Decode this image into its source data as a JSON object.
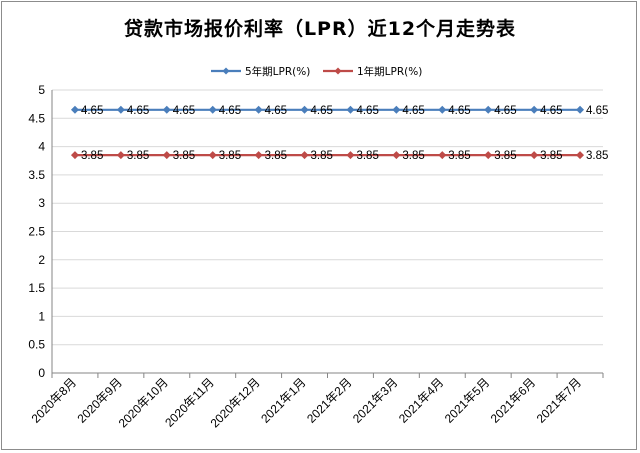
{
  "chart_data": {
    "type": "line",
    "title": "贷款市场报价利率（LPR）近12个月走势表",
    "categories": [
      "2020年8月",
      "2020年9月",
      "2020年10月",
      "2020年11月",
      "2020年12月",
      "2021年1月",
      "2021年2月",
      "2021年3月",
      "2021年4月",
      "2021年5月",
      "2021年6月",
      "2021年7月"
    ],
    "series": [
      {
        "name": "5年期LPR(%)",
        "color": "#4a7ebb",
        "values": [
          4.65,
          4.65,
          4.65,
          4.65,
          4.65,
          4.65,
          4.65,
          4.65,
          4.65,
          4.65,
          4.65,
          4.65
        ],
        "labels": [
          "4.65",
          "4.65",
          "4.65",
          "4.65",
          "4.65",
          "4.65",
          "4.65",
          "4.65",
          "4.65",
          "4.65",
          "4.65",
          "4.65"
        ]
      },
      {
        "name": "1年期LPR(%)",
        "color": "#be4b48",
        "values": [
          3.85,
          3.85,
          3.85,
          3.85,
          3.85,
          3.85,
          3.85,
          3.85,
          3.85,
          3.85,
          3.85,
          3.85
        ],
        "labels": [
          "3.85",
          "3.85",
          "3.85",
          "3.85",
          "3.85",
          "3.85",
          "3.85",
          "3.85",
          "3.85",
          "3.85",
          "3.85",
          "3.85"
        ]
      }
    ],
    "ylim": [
      0,
      5
    ],
    "yticks": [
      "0",
      "0.5",
      "1",
      "1.5",
      "2",
      "2.5",
      "3",
      "3.5",
      "4",
      "4.5",
      "5"
    ],
    "grid": true,
    "legend_position": "top"
  }
}
